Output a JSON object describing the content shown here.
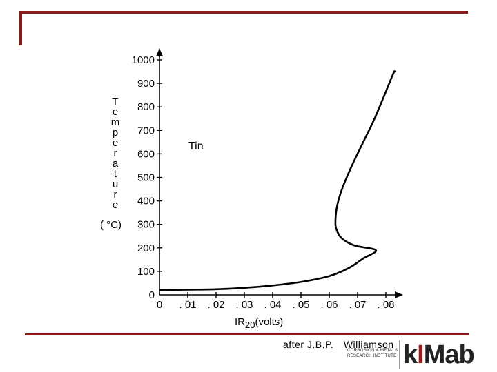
{
  "chart_data": {
    "type": "line",
    "title": "",
    "annotation": "Tin",
    "xlabel": {
      "base": "IR",
      "subscript": "20",
      "unit": "(volts)"
    },
    "ylabel": {
      "letters": [
        "T",
        "e",
        "m",
        "p",
        "e",
        "r",
        "a",
        "t",
        "u",
        "r",
        "e"
      ],
      "unit": "( °C)"
    },
    "xlim": [
      0,
      0.085
    ],
    "ylim": [
      0,
      1000
    ],
    "x_ticks": [
      {
        "value": 0,
        "label": "0"
      },
      {
        "value": 0.01,
        "label": ". 01"
      },
      {
        "value": 0.02,
        "label": ". 02"
      },
      {
        "value": 0.03,
        "label": ". 03"
      },
      {
        "value": 0.04,
        "label": ". 04"
      },
      {
        "value": 0.05,
        "label": ". 05"
      },
      {
        "value": 0.06,
        "label": ". 06"
      },
      {
        "value": 0.07,
        "label": ". 07"
      },
      {
        "value": 0.08,
        "label": ". 08"
      }
    ],
    "y_ticks": [
      {
        "value": 0,
        "label": "0"
      },
      {
        "value": 100,
        "label": "100"
      },
      {
        "value": 200,
        "label": "200"
      },
      {
        "value": 300,
        "label": "300"
      },
      {
        "value": 400,
        "label": "400"
      },
      {
        "value": 500,
        "label": "500"
      },
      {
        "value": 600,
        "label": "600"
      },
      {
        "value": 700,
        "label": "700"
      },
      {
        "value": 800,
        "label": "800"
      },
      {
        "value": 900,
        "label": "900"
      },
      {
        "value": 1000,
        "label": "1000"
      }
    ],
    "series": [
      {
        "color": "#000000",
        "points": [
          [
            0,
            20
          ],
          [
            0.01,
            22
          ],
          [
            0.02,
            24
          ],
          [
            0.03,
            30
          ],
          [
            0.04,
            40
          ],
          [
            0.05,
            55
          ],
          [
            0.06,
            80
          ],
          [
            0.067,
            115
          ],
          [
            0.072,
            155
          ],
          [
            0.0765,
            190
          ],
          [
            0.069,
            210
          ],
          [
            0.0645,
            240
          ],
          [
            0.0625,
            280
          ],
          [
            0.0622,
            320
          ],
          [
            0.0628,
            380
          ],
          [
            0.0645,
            450
          ],
          [
            0.068,
            550
          ],
          [
            0.072,
            650
          ],
          [
            0.076,
            750
          ],
          [
            0.0795,
            850
          ],
          [
            0.0822,
            930
          ],
          [
            0.0832,
            955
          ]
        ]
      }
    ],
    "grid": false
  },
  "credit": {
    "prefix": "after",
    "author": "J.B.P.",
    "name": "Williamson",
    "institute_line1": "CORROSION & METALS",
    "institute_line2": "RESEARCH  INSTITUTE"
  },
  "logo": {
    "k": "k",
    "i": "I",
    "rest": "Mab"
  },
  "colors": {
    "frame": "#8b1a1a",
    "logo_accent": "#9b1c1c"
  }
}
